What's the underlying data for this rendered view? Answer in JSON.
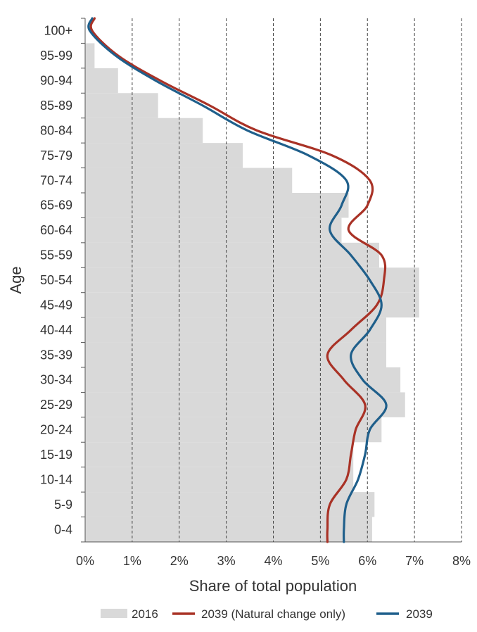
{
  "chart_data": {
    "type": "bar",
    "orientation": "horizontal",
    "ylabel": "Age",
    "xlabel": "Share of total population",
    "categories": [
      "0-4",
      "5-9",
      "10-14",
      "15-19",
      "20-24",
      "25-29",
      "30-34",
      "35-39",
      "40-44",
      "45-49",
      "50-54",
      "55-59",
      "60-64",
      "65-69",
      "70-74",
      "75-79",
      "80-84",
      "85-89",
      "90-94",
      "95-99",
      "100+"
    ],
    "xlim": [
      0,
      8
    ],
    "x_ticks": [
      "0%",
      "1%",
      "2%",
      "3%",
      "4%",
      "5%",
      "6%",
      "7%",
      "8%"
    ],
    "x_unit": "percent",
    "grid": "vertical dashed",
    "legend_position": "bottom",
    "series": [
      {
        "name": "2016",
        "kind": "bar",
        "color": "#d9d9d9",
        "values": [
          6.1,
          6.15,
          5.7,
          5.7,
          6.3,
          6.8,
          6.7,
          6.4,
          6.4,
          7.1,
          7.1,
          6.25,
          5.45,
          5.6,
          4.4,
          3.35,
          2.5,
          1.55,
          0.7,
          0.2,
          0.0
        ]
      },
      {
        "name": "2039 (Natural change only)",
        "kind": "line",
        "color": "#a93226",
        "values": [
          5.15,
          5.2,
          5.55,
          5.65,
          5.75,
          5.95,
          5.5,
          5.15,
          5.65,
          6.2,
          6.35,
          6.3,
          5.6,
          6.0,
          6.05,
          5.25,
          3.65,
          2.65,
          1.6,
          0.7,
          0.15
        ]
      },
      {
        "name": "2039",
        "kind": "line",
        "color": "#1f5f8b",
        "values": [
          5.5,
          5.55,
          5.8,
          5.95,
          6.05,
          6.4,
          5.9,
          5.65,
          6.05,
          6.3,
          6.05,
          5.65,
          5.2,
          5.45,
          5.55,
          4.75,
          3.45,
          2.5,
          1.5,
          0.65,
          0.1
        ]
      }
    ]
  }
}
